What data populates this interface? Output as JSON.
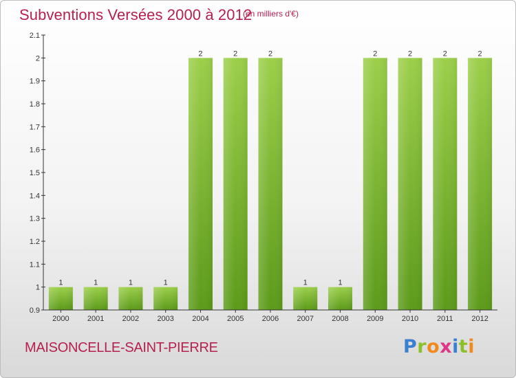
{
  "header": {
    "title": "Subventions Versées 2000 à 2012",
    "unit": "(en milliers d'€)"
  },
  "footer": {
    "commune": "MAISONCELLE-SAINT-PIERRE",
    "logo_text": "Proxiti"
  },
  "colors": {
    "title": "#b5204f",
    "bar_light": "#9ccf4a",
    "bar_dark": "#5c9a1a",
    "axis": "#333333"
  },
  "chart_data": {
    "type": "bar",
    "title": "Subventions Versées 2000 à 2012",
    "subtitle": "(en milliers d'€)",
    "xlabel": "",
    "ylabel": "",
    "categories": [
      "2000",
      "2001",
      "2002",
      "2003",
      "2004",
      "2005",
      "2006",
      "2007",
      "2008",
      "2009",
      "2010",
      "2011",
      "2012"
    ],
    "values": [
      1,
      1,
      1,
      1,
      2,
      2,
      2,
      1,
      1,
      2,
      2,
      2,
      2
    ],
    "data_labels": [
      "1",
      "1",
      "1",
      "1",
      "2",
      "2",
      "2",
      "1",
      "1",
      "2",
      "2",
      "2",
      "2"
    ],
    "ylim": [
      0.9,
      2.1
    ],
    "yticks": [
      "0.9",
      "1",
      "1.1",
      "1.2",
      "1.3",
      "1.4",
      "1.5",
      "1.6",
      "1.7",
      "1.8",
      "1.9",
      "2",
      "2.1"
    ],
    "grid": false,
    "legend": "none"
  }
}
